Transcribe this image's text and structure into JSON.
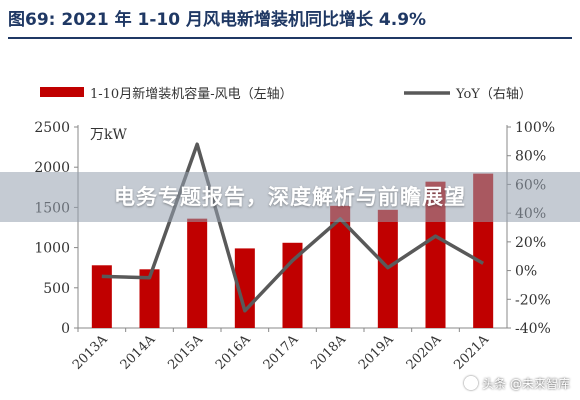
{
  "figure_title": "图69: 2021 年 1-10 月风电新增装机同比增长 4.9%",
  "overlay": {
    "text": "电务专题报告，深度解析与前瞻展望"
  },
  "watermark": {
    "text": "头条 @未来智库"
  },
  "colors": {
    "bar": "#c00000",
    "line": "#595959",
    "title": "#1f3864",
    "axis": "#888888"
  },
  "chart_data": {
    "type": "bar",
    "categories": [
      "2013A",
      "2014A",
      "2015A",
      "2016A",
      "2017A",
      "2018A",
      "2019A",
      "2020A",
      "2021A"
    ],
    "series": [
      {
        "name": "1-10月新增装机容量-风电（左轴）",
        "type": "bar",
        "axis": "left",
        "values": [
          780,
          730,
          1360,
          990,
          1060,
          1520,
          1470,
          1820,
          1920
        ]
      },
      {
        "name": "YoY（右轴）",
        "type": "line",
        "axis": "right",
        "values": [
          -4,
          -5,
          88,
          -28,
          7,
          36,
          2,
          24,
          5
        ]
      }
    ],
    "y_left": {
      "unit": "万kW",
      "range": [
        0,
        2500
      ],
      "ticks": [
        0,
        500,
        1000,
        1500,
        2000,
        2500
      ],
      "tick_labels": [
        "0",
        "500",
        "1000",
        "1500",
        "2000",
        "2500"
      ]
    },
    "y_right": {
      "range": [
        -40,
        100
      ],
      "ticks": [
        -40,
        -20,
        0,
        20,
        40,
        60,
        80,
        100
      ],
      "tick_labels": [
        "-40%",
        "-20%",
        "0%",
        "20%",
        "40%",
        "60%",
        "80%",
        "100%"
      ]
    },
    "legend_position": "top",
    "grid": false
  }
}
